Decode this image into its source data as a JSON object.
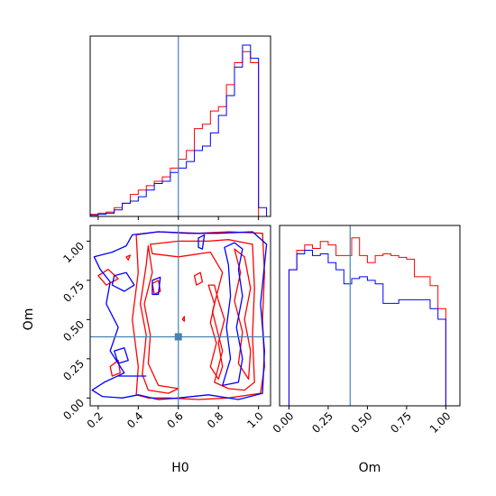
{
  "chart_data": [
    {
      "type": "histogram",
      "panel": "H0-marginal",
      "x_range": [
        0.16,
        1.06
      ],
      "truth": 0.6,
      "bin_edges": [
        0.16,
        0.2,
        0.24,
        0.28,
        0.32,
        0.36,
        0.4,
        0.44,
        0.48,
        0.52,
        0.56,
        0.6,
        0.64,
        0.68,
        0.72,
        0.76,
        0.8,
        0.84,
        0.88,
        0.92,
        0.96,
        1.0,
        1.04
      ],
      "series": [
        {
          "name": "",
          "color": "#ff0000",
          "values": [
            0.01,
            0.015,
            0.02,
            0.04,
            0.06,
            0.1,
            0.12,
            0.14,
            0.16,
            0.18,
            0.22,
            0.26,
            0.3,
            0.4,
            0.42,
            0.48,
            0.5,
            0.6,
            0.7,
            0.75,
            0.7,
            0.0
          ]
        },
        {
          "name": "",
          "color": "#0000ff",
          "values": [
            0.005,
            0.01,
            0.015,
            0.03,
            0.06,
            0.07,
            0.09,
            0.12,
            0.15,
            0.16,
            0.2,
            0.22,
            0.25,
            0.3,
            0.32,
            0.38,
            0.46,
            0.55,
            0.68,
            0.78,
            0.72,
            0.04
          ]
        }
      ]
    },
    {
      "type": "contour",
      "panel": "H0-Om-joint",
      "xlabel": "H0",
      "ylabel": "Om",
      "x_range": [
        0.16,
        1.06
      ],
      "y_range": [
        -0.05,
        1.1
      ],
      "x_ticks": [
        "0.2",
        "0.4",
        "0.6",
        "0.8",
        "1.0"
      ],
      "y_ticks": [
        "0.00",
        "0.25",
        "0.50",
        "0.75",
        "1.00"
      ],
      "truth": [
        0.6,
        0.39
      ],
      "series": [
        {
          "name": "",
          "color": "#ff0000",
          "contours": [
            [
              [
                0.39,
                1.04
              ],
              [
                0.5,
                1.06
              ],
              [
                0.7,
                1.05
              ],
              [
                0.85,
                1.06
              ],
              [
                1.02,
                1.05
              ],
              [
                1.03,
                0.8
              ],
              [
                1.02,
                0.5
              ],
              [
                1.03,
                0.2
              ],
              [
                1.01,
                0.03
              ],
              [
                0.85,
                0.0
              ],
              [
                0.7,
                -0.01
              ],
              [
                0.55,
                0.0
              ],
              [
                0.45,
                0.0
              ],
              [
                0.39,
                0.02
              ],
              [
                0.4,
                0.2
              ],
              [
                0.37,
                0.5
              ],
              [
                0.4,
                0.8
              ]
            ],
            [
              [
                0.46,
                0.98
              ],
              [
                0.6,
                1.0
              ],
              [
                0.75,
                1.0
              ],
              [
                0.85,
                1.01
              ],
              [
                0.97,
                0.98
              ],
              [
                0.98,
                0.7
              ],
              [
                0.97,
                0.4
              ],
              [
                0.98,
                0.1
              ],
              [
                0.93,
                0.05
              ],
              [
                0.85,
                0.06
              ],
              [
                0.78,
                0.1
              ],
              [
                0.82,
                0.3
              ],
              [
                0.77,
                0.55
              ],
              [
                0.82,
                0.8
              ],
              [
                0.76,
                0.93
              ],
              [
                0.6,
                0.9
              ],
              [
                0.47,
                0.92
              ]
            ],
            [
              [
                0.45,
                0.97
              ],
              [
                0.47,
                0.8
              ],
              [
                0.43,
                0.6
              ],
              [
                0.46,
                0.4
              ],
              [
                0.45,
                0.22
              ],
              [
                0.5,
                0.08
              ],
              [
                0.6,
                0.06
              ],
              [
                0.55,
                0.03
              ],
              [
                0.45,
                0.05
              ],
              [
                0.42,
                0.15
              ],
              [
                0.44,
                0.4
              ],
              [
                0.41,
                0.6
              ],
              [
                0.44,
                0.85
              ]
            ],
            [
              [
                0.75,
                0.72
              ],
              [
                0.78,
                0.6
              ],
              [
                0.76,
                0.48
              ],
              [
                0.79,
                0.35
              ],
              [
                0.76,
                0.2
              ],
              [
                0.8,
                0.12
              ],
              [
                0.82,
                0.2
              ],
              [
                0.8,
                0.35
              ],
              [
                0.83,
                0.5
              ],
              [
                0.8,
                0.62
              ],
              [
                0.78,
                0.72
              ]
            ],
            [
              [
                0.88,
                0.95
              ],
              [
                0.91,
                0.8
              ],
              [
                0.88,
                0.62
              ],
              [
                0.92,
                0.42
              ],
              [
                0.9,
                0.22
              ],
              [
                0.95,
                0.12
              ],
              [
                0.96,
                0.3
              ],
              [
                0.93,
                0.5
              ],
              [
                0.96,
                0.7
              ],
              [
                0.93,
                0.9
              ]
            ],
            [
              [
                0.2,
                0.78
              ],
              [
                0.25,
                0.82
              ],
              [
                0.3,
                0.76
              ],
              [
                0.24,
                0.72
              ]
            ],
            [
              [
                0.26,
                0.2
              ],
              [
                0.3,
                0.24
              ],
              [
                0.31,
                0.16
              ],
              [
                0.27,
                0.14
              ]
            ],
            [
              [
                0.47,
                0.73
              ],
              [
                0.5,
                0.75
              ],
              [
                0.51,
                0.68
              ],
              [
                0.48,
                0.66
              ]
            ],
            [
              [
                0.68,
                0.78
              ],
              [
                0.71,
                0.8
              ],
              [
                0.72,
                0.74
              ],
              [
                0.69,
                0.72
              ]
            ],
            [
              [
                0.34,
                0.9
              ],
              [
                0.36,
                0.91
              ],
              [
                0.35,
                0.88
              ]
            ],
            [
              [
                0.62,
                0.5
              ],
              [
                0.63,
                0.52
              ],
              [
                0.63,
                0.49
              ]
            ]
          ]
        },
        {
          "name": "",
          "color": "#0000ff",
          "contours": [
            [
              [
                0.37,
                1.04
              ],
              [
                0.5,
                1.06
              ],
              [
                0.65,
                1.05
              ],
              [
                0.8,
                1.05
              ],
              [
                0.97,
                1.06
              ],
              [
                1.04,
                0.98
              ],
              [
                1.01,
                0.6
              ],
              [
                1.03,
                0.3
              ],
              [
                1.02,
                0.03
              ],
              [
                0.9,
                -0.01
              ],
              [
                0.75,
                0.02
              ],
              [
                0.6,
                0.0
              ],
              [
                0.5,
                -0.01
              ],
              [
                0.4,
                0.02
              ],
              [
                0.32,
                0.0
              ],
              [
                0.22,
                0.01
              ],
              [
                0.17,
                0.05
              ],
              [
                0.23,
                0.1
              ],
              [
                0.33,
                0.16
              ],
              [
                0.26,
                0.3
              ],
              [
                0.3,
                0.45
              ],
              [
                0.24,
                0.6
              ],
              [
                0.26,
                0.74
              ],
              [
                0.21,
                0.82
              ],
              [
                0.18,
                0.9
              ],
              [
                0.27,
                0.93
              ],
              [
                0.34,
                0.97
              ]
            ],
            [
              [
                0.83,
                0.96
              ],
              [
                0.88,
                0.99
              ],
              [
                0.92,
                0.95
              ],
              [
                0.9,
                0.82
              ],
              [
                0.92,
                0.65
              ],
              [
                0.89,
                0.45
              ],
              [
                0.92,
                0.25
              ],
              [
                0.9,
                0.1
              ],
              [
                0.82,
                0.08
              ],
              [
                0.86,
                0.25
              ],
              [
                0.84,
                0.45
              ],
              [
                0.86,
                0.65
              ],
              [
                0.85,
                0.85
              ]
            ],
            [
              [
                0.28,
                0.78
              ],
              [
                0.34,
                0.8
              ],
              [
                0.38,
                0.72
              ],
              [
                0.33,
                0.68
              ],
              [
                0.27,
                0.72
              ]
            ],
            [
              [
                0.28,
                0.3
              ],
              [
                0.33,
                0.32
              ],
              [
                0.35,
                0.24
              ],
              [
                0.3,
                0.22
              ]
            ],
            [
              [
                0.47,
                0.75
              ],
              [
                0.51,
                0.77
              ],
              [
                0.5,
                0.66
              ],
              [
                0.47,
                0.66
              ]
            ],
            [
              [
                0.7,
                1.02
              ],
              [
                0.73,
                1.04
              ],
              [
                0.72,
                0.95
              ],
              [
                0.7,
                0.96
              ]
            ],
            [
              [
                0.3,
                0.14
              ],
              [
                0.44,
                0.14
              ]
            ]
          ]
        }
      ]
    },
    {
      "type": "histogram",
      "panel": "Om-marginal",
      "xlabel": "Om",
      "x_range": [
        -0.06,
        1.09
      ],
      "x_ticks": [
        "0.00",
        "0.25",
        "0.50",
        "0.75",
        "1.00"
      ],
      "truth": 0.39,
      "bin_edges": [
        0.0,
        0.05,
        0.1,
        0.15,
        0.2,
        0.25,
        0.3,
        0.35,
        0.4,
        0.45,
        0.5,
        0.55,
        0.6,
        0.65,
        0.7,
        0.75,
        0.8,
        0.85,
        0.9,
        0.95,
        1.0
      ],
      "series": [
        {
          "name": "",
          "color": "#ff0000",
          "values": [
            0.77,
            0.88,
            0.91,
            0.89,
            0.93,
            0.91,
            0.85,
            0.85,
            0.95,
            0.85,
            0.81,
            0.85,
            0.86,
            0.85,
            0.84,
            0.83,
            0.73,
            0.73,
            0.68,
            0.55
          ]
        },
        {
          "name": "",
          "color": "#0000ff",
          "values": [
            0.77,
            0.86,
            0.88,
            0.85,
            0.86,
            0.81,
            0.77,
            0.69,
            0.72,
            0.73,
            0.71,
            0.69,
            0.58,
            0.58,
            0.6,
            0.6,
            0.6,
            0.6,
            0.55,
            0.49
          ]
        }
      ]
    }
  ]
}
